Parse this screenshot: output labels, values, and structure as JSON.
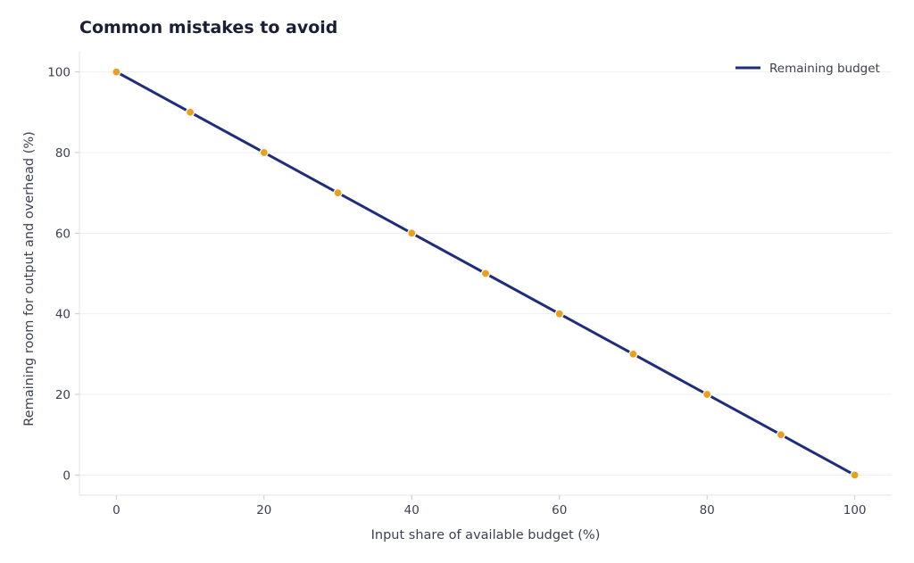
{
  "chart_data": {
    "type": "line",
    "title": "Common mistakes to avoid",
    "xlabel": "Input share of available budget (%)",
    "ylabel": "Remaining room for output and overhead (%)",
    "xlim": [
      -5,
      105
    ],
    "ylim": [
      -5,
      105
    ],
    "xticks": [
      0,
      20,
      40,
      60,
      80,
      100
    ],
    "yticks": [
      0,
      20,
      40,
      60,
      80,
      100
    ],
    "grid": "y",
    "legend_position": "top-right",
    "series": [
      {
        "name": "Remaining budget",
        "color": "#1f2d7a",
        "marker_color": "#e8a020",
        "x": [
          0,
          10,
          20,
          30,
          40,
          50,
          60,
          70,
          80,
          90,
          100
        ],
        "y": [
          100,
          90,
          80,
          70,
          60,
          50,
          40,
          30,
          20,
          10,
          0
        ]
      }
    ]
  }
}
